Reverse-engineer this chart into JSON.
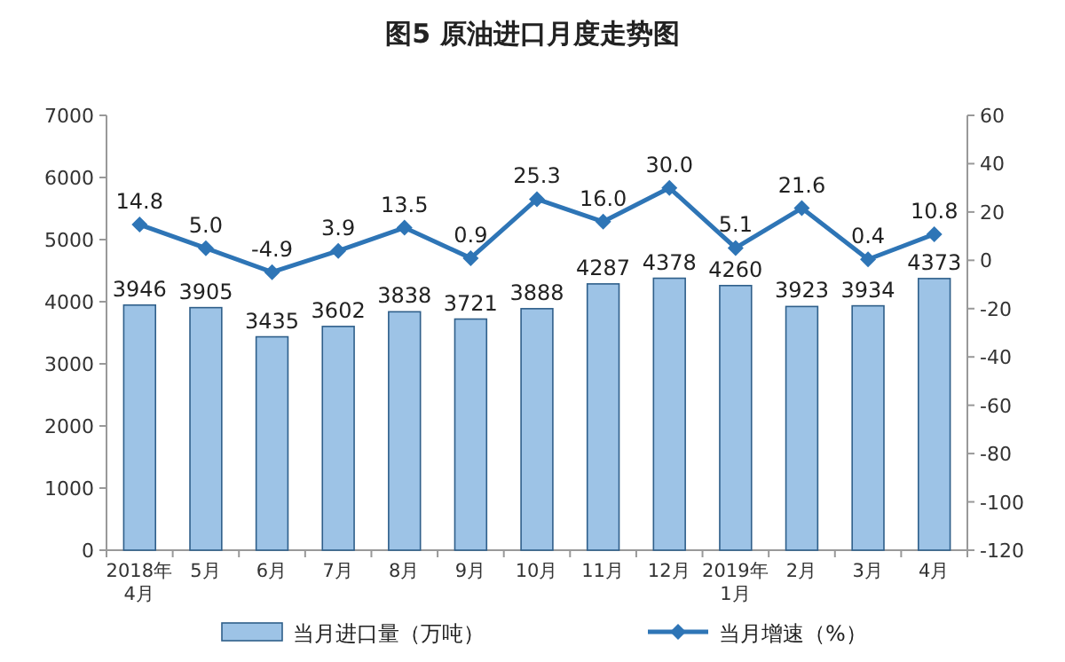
{
  "chart_data": {
    "type": "bar",
    "title": "图5  原油进口月度走势图",
    "categories": [
      "2018年\n4月",
      "5月",
      "6月",
      "7月",
      "8月",
      "9月",
      "10月",
      "11月",
      "12月",
      "2019年\n1月",
      "2月",
      "3月",
      "4月"
    ],
    "series": [
      {
        "name": "当月进口量（万吨）",
        "color": "#9dc3e6",
        "values": [
          3946,
          3905,
          3435,
          3602,
          3838,
          3721,
          3888,
          4287,
          4378,
          4260,
          3923,
          3934,
          4373
        ],
        "value_labels": [
          "3946",
          "3905",
          "3435",
          "3602",
          "3838",
          "3721",
          "3888",
          "4287",
          "4378",
          "4260",
          "3923",
          "3934",
          "4373"
        ]
      },
      {
        "name": "当月增速（%）",
        "type": "line",
        "axis": "y2",
        "color": "#2e75b6",
        "marker": "diamond",
        "values": [
          14.8,
          5.0,
          -4.9,
          3.9,
          13.5,
          0.9,
          25.3,
          16.0,
          30.0,
          5.1,
          21.6,
          0.4,
          10.8
        ],
        "value_labels": [
          "14.8",
          "5.0",
          "-4.9",
          "3.9",
          "13.5",
          "0.9",
          "25.3",
          "16.0",
          "30.0",
          "5.1",
          "21.6",
          "0.4",
          "10.8"
        ]
      }
    ],
    "ylim": [
      0,
      7000
    ],
    "yticks": [
      0,
      1000,
      2000,
      3000,
      4000,
      5000,
      6000,
      7000
    ],
    "y2lim": [
      -120,
      60
    ],
    "y2ticks": [
      -120,
      -100,
      -80,
      -60,
      -40,
      -20,
      0,
      20,
      40,
      60
    ],
    "grid": false,
    "legend": "bottom"
  }
}
